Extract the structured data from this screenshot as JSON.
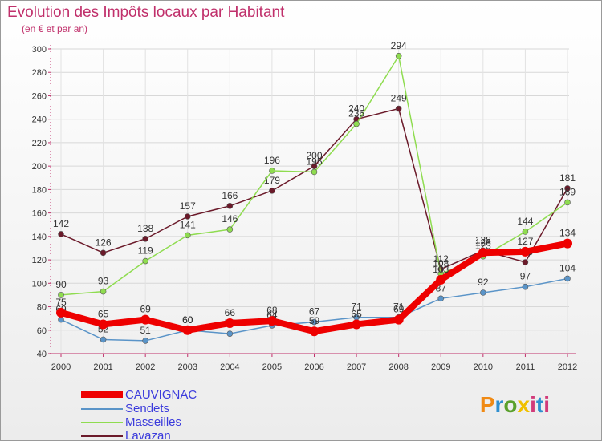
{
  "title": "Evolution des Impôts locaux par Habitant",
  "subtitle": "(en € et par an)",
  "logo": "Proxiti",
  "chart_data": {
    "type": "line",
    "title": "Evolution des Impôts locaux par Habitant",
    "subtitle": "(en € et par an)",
    "xlabel": "",
    "ylabel": "",
    "ylim": [
      40,
      300
    ],
    "yticks": [
      "40",
      "60",
      "80",
      "100",
      "120",
      "140",
      "160",
      "180",
      "200",
      "220",
      "240",
      "260",
      "280",
      "300"
    ],
    "categories": [
      "2000",
      "2001",
      "2002",
      "2003",
      "2004",
      "2005",
      "2006",
      "2007",
      "2008",
      "2009",
      "2010",
      "2011",
      "2012"
    ],
    "series": [
      {
        "name": "Lavazan",
        "color": "#6b1a2a",
        "values": [
          142,
          126,
          138,
          157,
          166,
          179,
          200,
          240,
          249,
          112,
          128,
          118,
          181
        ]
      },
      {
        "name": "Masseilles",
        "color": "#8fdc50",
        "values": [
          90,
          93,
          119,
          141,
          146,
          196,
          195,
          236,
          294,
          108,
          123,
          144,
          169
        ]
      },
      {
        "name": "Sendets",
        "color": "#5a94c8",
        "values": [
          69,
          52,
          51,
          60,
          57,
          64,
          67,
          71,
          71,
          87,
          92,
          97,
          104
        ]
      },
      {
        "name": "CAUVIGNAC",
        "color": "#ee0000",
        "values": [
          75,
          65,
          69,
          60,
          66,
          68,
          59,
          65,
          69,
          103,
          126,
          127,
          134
        ]
      }
    ],
    "legend": [
      "CAUVIGNAC",
      "Sendets",
      "Masseilles",
      "Lavazan"
    ],
    "legend_position": "bottom-left"
  }
}
